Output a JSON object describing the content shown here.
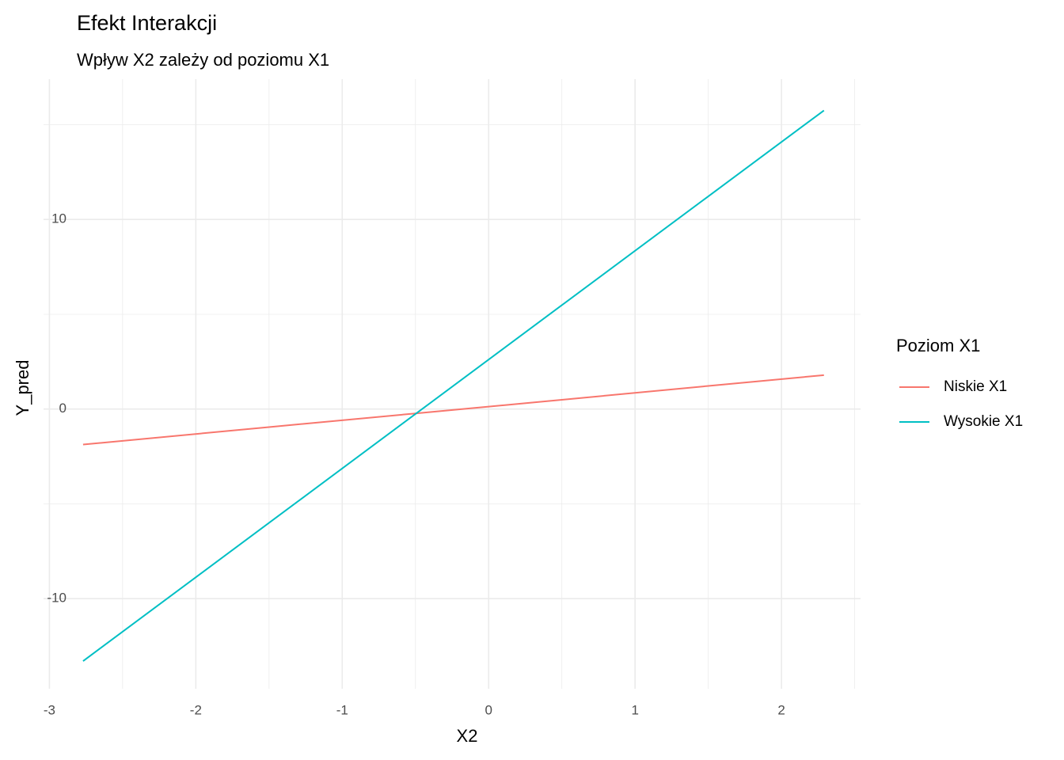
{
  "chart_data": {
    "type": "line",
    "title": "Efekt Interakcji",
    "subtitle": "Wpływ X2 zależy od poziomu X1",
    "x_label": "X2",
    "y_label": "Y_pred",
    "legend_title": "Poziom X1",
    "x": [
      -2.77,
      -1.5,
      -0.5,
      0.5,
      1.5,
      2.29
    ],
    "series": [
      {
        "name": "Niskie X1",
        "color": "#F8766D",
        "values": [
          -1.87,
          -0.95,
          -0.23,
          0.49,
          1.22,
          1.79
        ]
      },
      {
        "name": "Wysokie X1",
        "color": "#00BFC4",
        "values": [
          -13.29,
          -6.0,
          -0.26,
          5.48,
          11.22,
          15.75
        ]
      }
    ],
    "xlim": [
      -3.04,
      2.54
    ],
    "ylim": [
      -14.75,
      17.4
    ],
    "xticks": [
      -3,
      -2,
      -1,
      0,
      1,
      2
    ],
    "yticks": [
      -10,
      0,
      10
    ],
    "xminor": [
      -2.5,
      -1.5,
      -0.5,
      0.5,
      1.5,
      2.5
    ],
    "yminor": [
      -5,
      5,
      15
    ],
    "grid": true,
    "legend": "right"
  }
}
